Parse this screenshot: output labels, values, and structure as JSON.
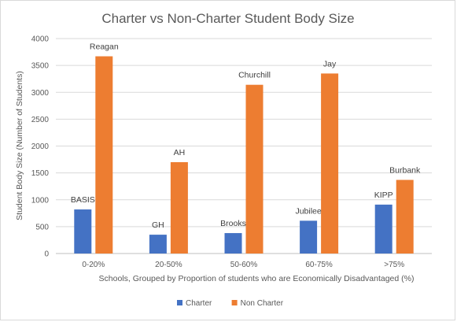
{
  "chart_data": {
    "type": "bar",
    "title": "Charter vs Non-Charter Student Body Size",
    "xlabel": "Schools, Grouped by Proportion of students who are Economically Disadvantaged (%)",
    "ylabel": "Student Body Size (Number of Students)",
    "ylim": [
      0,
      4000
    ],
    "yticks": [
      0,
      500,
      1000,
      1500,
      2000,
      2500,
      3000,
      3500,
      4000
    ],
    "grid": true,
    "legend_position": "bottom",
    "categories": [
      "0-20%",
      "20-50%",
      "50-60%",
      "60-75%",
      ">75%"
    ],
    "series": [
      {
        "name": "Charter",
        "color": "#4472c4",
        "values": [
          820,
          350,
          380,
          610,
          910
        ],
        "labels": [
          "BASIS",
          "GH",
          "Brooks",
          "Jubilee",
          "KIPP"
        ]
      },
      {
        "name": "Non Charter",
        "color": "#ed7d31",
        "values": [
          3670,
          1700,
          3140,
          3350,
          1370
        ],
        "labels": [
          "Reagan",
          "AH",
          "Churchill",
          "Jay",
          "Burbank"
        ]
      }
    ]
  }
}
